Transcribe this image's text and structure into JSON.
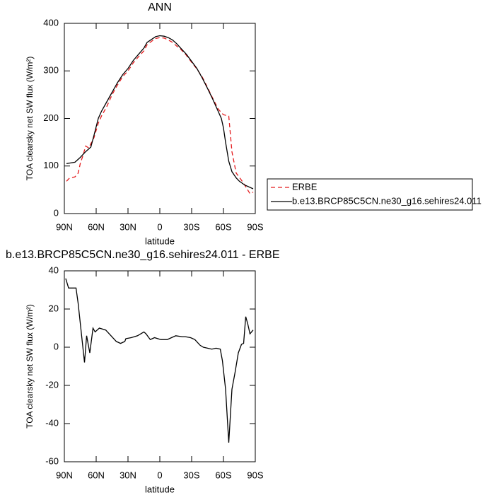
{
  "chart_data": [
    {
      "type": "line",
      "title": "ANN",
      "xlabel": "latitude",
      "ylabel": "TOA clearsky net SW flux (W/m²)",
      "xlim": [
        90,
        -90
      ],
      "xticks": [
        {
          "value": 90,
          "label": "90N"
        },
        {
          "value": 60,
          "label": "60N"
        },
        {
          "value": 30,
          "label": "30N"
        },
        0,
        {
          "value": -30,
          "label": "30S"
        },
        {
          "value": -60,
          "label": "60S"
        },
        {
          "value": -90,
          "label": "90S"
        }
      ],
      "ylim": [
        0,
        400
      ],
      "yticks": [
        0,
        100,
        200,
        300,
        400
      ],
      "legend": "right",
      "series": [
        {
          "name": "ERBE",
          "color": "#e41a1c",
          "dashed": true,
          "x": [
            88,
            85,
            80,
            77,
            75,
            72,
            70,
            67,
            62,
            58,
            55,
            50,
            45,
            40,
            35,
            30,
            25,
            20,
            15,
            12,
            8,
            4,
            0,
            -4,
            -8,
            -12,
            -16,
            -20,
            -25,
            -30,
            -35,
            -40,
            -45,
            -50,
            -55,
            -58,
            -60,
            -63,
            -65,
            -68,
            -72,
            -77,
            -80,
            -85,
            -88
          ],
          "values": [
            68,
            75,
            77,
            85,
            105,
            125,
            142,
            138,
            160,
            190,
            205,
            225,
            250,
            270,
            288,
            300,
            317,
            330,
            342,
            355,
            362,
            368,
            370,
            369,
            365,
            360,
            352,
            345,
            333,
            318,
            304,
            287,
            265,
            242,
            220,
            212,
            208,
            206,
            205,
            130,
            85,
            70,
            60,
            42,
            45
          ]
        },
        {
          "name": "b.e13.BRCP85C5CN.ne30_g16.sehires24.011",
          "color": "#000000",
          "dashed": false,
          "x": [
            88,
            80,
            75,
            70,
            65,
            62,
            58,
            55,
            50,
            45,
            40,
            35,
            30,
            25,
            20,
            15,
            12,
            8,
            4,
            0,
            -4,
            -8,
            -12,
            -16,
            -20,
            -25,
            -30,
            -35,
            -40,
            -45,
            -50,
            -55,
            -58,
            -60,
            -62,
            -65,
            -68,
            -72,
            -75,
            -80,
            -88
          ],
          "values": [
            105,
            108,
            118,
            130,
            140,
            165,
            200,
            215,
            235,
            255,
            275,
            292,
            305,
            322,
            335,
            348,
            360,
            366,
            372,
            374,
            373,
            370,
            365,
            357,
            347,
            335,
            320,
            305,
            285,
            263,
            240,
            215,
            200,
            180,
            150,
            110,
            88,
            75,
            68,
            60,
            52
          ]
        }
      ]
    },
    {
      "type": "line",
      "title": "b.e13.BRCP85C5CN.ne30_g16.sehires24.011 - ERBE",
      "xlabel": "latitude",
      "ylabel": "TOA clearsky net SW flux (W/m²)",
      "xlim": [
        90,
        -90
      ],
      "xticks": [
        {
          "value": 90,
          "label": "90N"
        },
        {
          "value": 60,
          "label": "60N"
        },
        {
          "value": 30,
          "label": "30N"
        },
        0,
        {
          "value": -30,
          "label": "30S"
        },
        {
          "value": -60,
          "label": "60S"
        },
        {
          "value": -90,
          "label": "90S"
        }
      ],
      "ylim": [
        -60,
        40
      ],
      "yticks": [
        -60,
        -40,
        -20,
        0,
        20,
        40
      ],
      "series": [
        {
          "color": "#000000",
          "dashed": false,
          "x": [
            88.7,
            86,
            79,
            77,
            71,
            69,
            66,
            63,
            61,
            57,
            51,
            46,
            41,
            37,
            33,
            32,
            27,
            21,
            15,
            13,
            9,
            5,
            -1,
            -7,
            -11,
            -15,
            -21,
            -24,
            -29,
            -33,
            -38,
            -41,
            -49,
            -53,
            -57,
            -59,
            -62,
            -65,
            -68,
            -71,
            -74,
            -77,
            -79,
            -81,
            -83,
            -85,
            -88
          ],
          "values": [
            36,
            31,
            31,
            23,
            -8,
            6,
            -3,
            10,
            8,
            10,
            9,
            6,
            3,
            2,
            3,
            4.5,
            5,
            6,
            8,
            7,
            4,
            5,
            4,
            4,
            5,
            6,
            5.5,
            5.5,
            5,
            4,
            1,
            0,
            -1,
            -0.5,
            -1,
            -7,
            -22,
            -50,
            -22,
            -13,
            -3,
            1.5,
            2,
            16,
            12,
            7,
            9
          ]
        }
      ]
    }
  ]
}
